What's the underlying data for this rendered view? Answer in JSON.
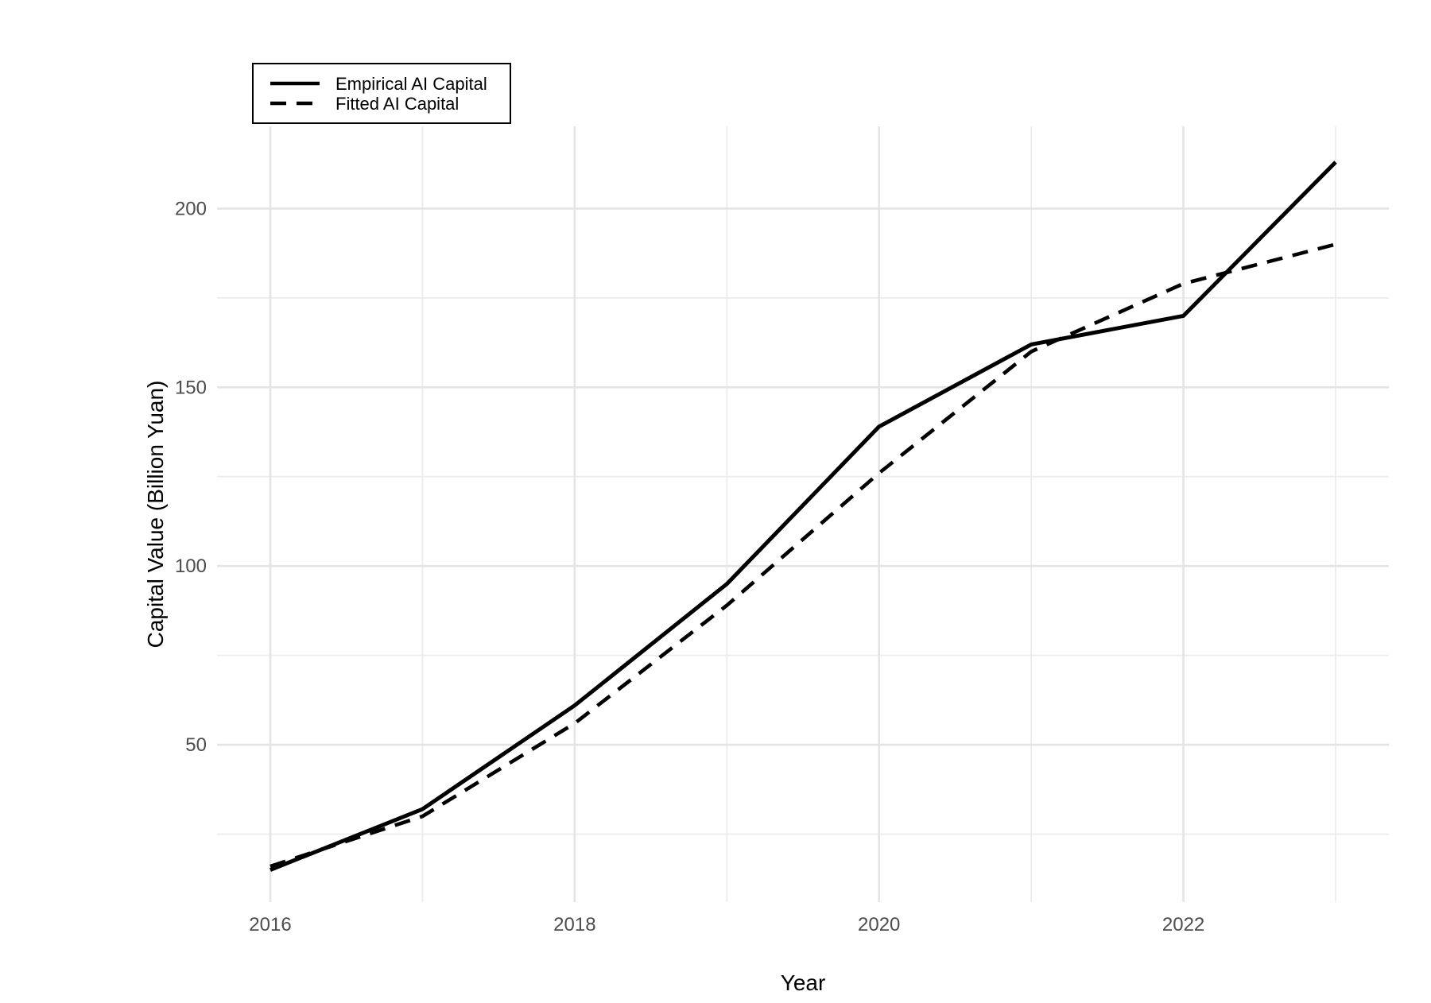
{
  "chart_data": {
    "type": "line",
    "title": "",
    "xlabel": "Year",
    "ylabel": "Capital Value (Billion Yuan)",
    "x": [
      2016,
      2017,
      2018,
      2019,
      2020,
      2021,
      2022,
      2023
    ],
    "series": [
      {
        "name": "Empirical AI Capital",
        "style": "solid",
        "values": [
          15,
          32,
          61,
          95,
          139,
          162,
          170,
          213
        ]
      },
      {
        "name": "Fitted AI Capital",
        "style": "dashed",
        "values": [
          16,
          30,
          56,
          89,
          126,
          160,
          179,
          190
        ]
      }
    ],
    "x_major_ticks": [
      2016,
      2018,
      2020,
      2022
    ],
    "x_minor_ticks": [
      2017,
      2019,
      2021,
      2023
    ],
    "y_major_ticks": [
      50,
      100,
      150,
      200
    ],
    "y_minor_ticks": [
      25,
      75,
      125,
      175
    ],
    "xlim": [
      2015.65,
      2023.35
    ],
    "ylim": [
      6,
      223
    ],
    "grid": "major+minor",
    "legend_position": "top-left-inset",
    "colors": {
      "line": "#000000",
      "grid_major": "#e4e4e4",
      "grid_minor": "#ececec",
      "tick_label": "#4d4d4d",
      "axis_title": "#000000",
      "background": "#ffffff",
      "legend_border": "#000000"
    }
  }
}
